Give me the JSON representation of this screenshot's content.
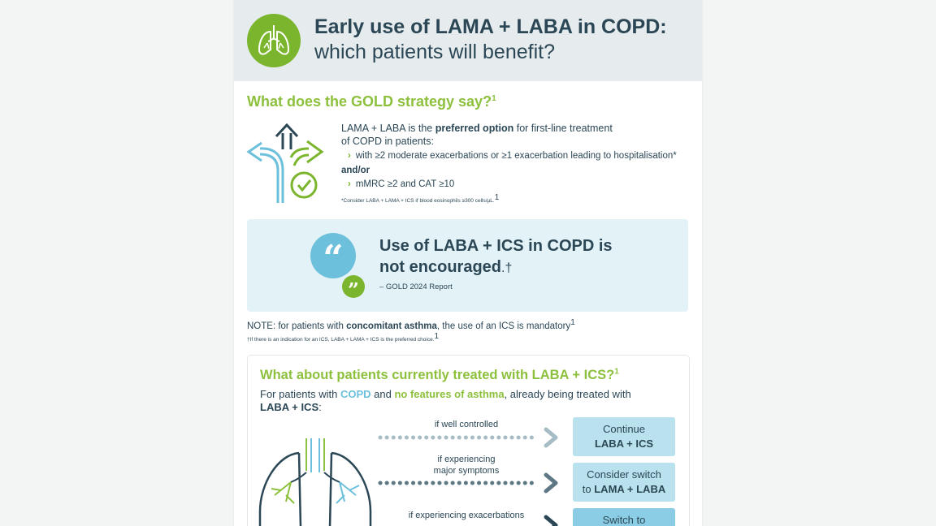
{
  "header": {
    "title": "Early use of LAMA + LABA in COPD:",
    "subtitle": "which patients will benefit?",
    "badge_icon": "lungs-icon"
  },
  "gold": {
    "heading": "What does the GOLD strategy say?",
    "heading_sup": "1",
    "intro_pre": "LAMA + LABA is the ",
    "intro_bold": "preferred option",
    "intro_post": " for first-line treatment",
    "intro_line2": "of COPD in patients:",
    "bullet1": "with ≥2 moderate exacerbations or ≥1 exacerbation leading to hospitalisation*",
    "andor": "and/or",
    "bullet2": "mMRC ≥2 and CAT ≥10",
    "footnote": "*Consider LABA + LAMA + ICS if blood eosinophils  ≥300 cells/µL.",
    "footnote_sup": "1"
  },
  "quote": {
    "line1": "Use of LABA + ICS in COPD is",
    "line2": "not encouraged",
    "line2_mark": ".†",
    "source": "– GOLD 2024 Report"
  },
  "note": {
    "pre": "NOTE: for patients with ",
    "bold": "concomitant asthma",
    "post": ", the use of an ICS is mandatory",
    "sup": "1",
    "footnote": "†If there is an indication for an ICS, LABA + LAMA + ICS is the preferred choice.",
    "footnote_sup": "1"
  },
  "panel": {
    "heading": "What about patients currently treated with LABA + ICS?",
    "heading_sup": "1",
    "intro_pre": "For patients with ",
    "intro_copd": "COPD",
    "intro_mid": " and ",
    "intro_bold": "no features of asthma",
    "intro_post": ", already being treated with",
    "intro_line2": "LABA + ICS",
    "intro_line2_end": ":",
    "conditions": [
      {
        "label": "if well controlled",
        "out_line1": "Continue",
        "out_line2": "LABA + ICS"
      },
      {
        "label": "if experiencing",
        "label2": "major symptoms",
        "out_line1": "Consider switch",
        "out_line2_pre": "to ",
        "out_line2": "LAMA + LABA"
      },
      {
        "label": "if experiencing exacerbations",
        "out_line1": "Switch to"
      }
    ]
  },
  "colors": {
    "green": "#8cc03d",
    "navy": "#2b4756",
    "light_blue_bg": "#e3f2f7",
    "box_blue": "#b9e1ee",
    "quote_blue": "#6cc0dc"
  }
}
